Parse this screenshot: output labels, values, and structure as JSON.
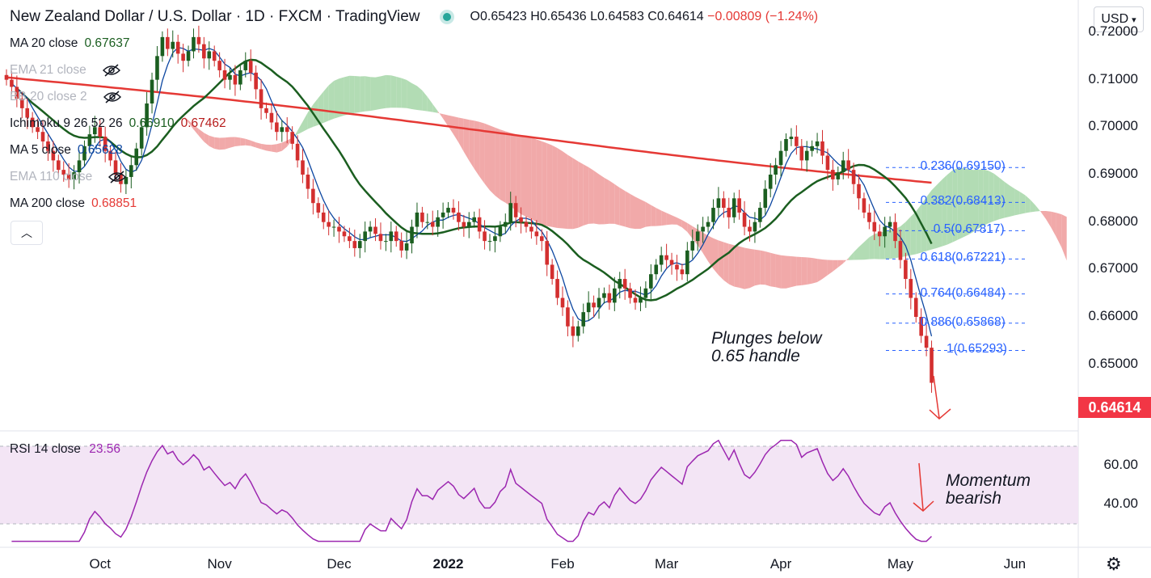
{
  "header": {
    "title": "New Zealand Dollar / U.S. Dollar · 1D · FXCM · TradingView",
    "open": "O0.65423",
    "high": "H0.65436",
    "low": "L0.64583",
    "close": "C0.64614",
    "change": "−0.00809 (−1.24%)"
  },
  "currency_button": "USD",
  "legend": [
    {
      "label": "MA 20 close",
      "value": "0.67637",
      "value2": "",
      "color": "#1b5e20",
      "color2": "",
      "dim": false,
      "eye": false
    },
    {
      "label": "EMA 21 close",
      "value": "",
      "value2": "",
      "color": "#b2b5be",
      "color2": "",
      "dim": true,
      "eye": true
    },
    {
      "label": "BB 20 close 2",
      "value": "",
      "value2": "",
      "color": "#b2b5be",
      "color2": "",
      "dim": true,
      "eye": true
    },
    {
      "label": "Ichimoku 9 26 52 26",
      "value": "0.66910",
      "value2": "0.67462",
      "color": "#1b5e20",
      "color2": "#b71c1c",
      "dim": false,
      "eye": false
    },
    {
      "label": "MA 5 close",
      "value": "0.65628",
      "value2": "",
      "color": "#0d47a1",
      "color2": "",
      "dim": false,
      "eye": false
    },
    {
      "label": "EMA 110 close",
      "value": "",
      "value2": "",
      "color": "#b2b5be",
      "color2": "",
      "dim": true,
      "eye": true
    },
    {
      "label": "MA 200 close",
      "value": "0.68851",
      "value2": "",
      "color": "#e53935",
      "color2": "",
      "dim": false,
      "eye": false
    }
  ],
  "rsi_legend": {
    "label": "RSI 14 close",
    "value": "23.56"
  },
  "last_price": "0.64614",
  "annotations": {
    "plunge": [
      "Plunges below",
      "0.65 handle"
    ],
    "momentum": [
      "Momentum",
      "bearish"
    ]
  },
  "fib_levels": [
    {
      "label": "0.236(0.69150)",
      "price": 0.6915
    },
    {
      "label": "0.382(0.68413)",
      "price": 0.68413
    },
    {
      "label": "0.5(0.67817)",
      "price": 0.67817
    },
    {
      "label": "0.618(0.67221)",
      "price": 0.67221
    },
    {
      "label": "0.764(0.66484)",
      "price": 0.66484
    },
    {
      "label": "0.886(0.65868)",
      "price": 0.65868
    },
    {
      "label": "1(0.65293)",
      "price": 0.65293
    }
  ],
  "colors": {
    "up": "#26a69a",
    "candle_up": "#1b5e20",
    "candle_down": "#d32f2f",
    "ma20": "#1b5e20",
    "ma5": "#0d47a1",
    "ma200": "#e53935",
    "cloud_bull": "#a5d6a7",
    "cloud_bear": "#ef9a9a",
    "fib": "#2962ff",
    "rsi": "#9c27b0",
    "rsi_band": "#f3e5f5",
    "arrow": "#e53935"
  },
  "chart_data": {
    "type": "candlestick",
    "title": "New Zealand Dollar / U.S. Dollar · 1D · FXCM · TradingView",
    "price_axis": {
      "ticks": [
        "0.72000",
        "0.71000",
        "0.70000",
        "0.69000",
        "0.68000",
        "0.67000",
        "0.66000",
        "0.65000"
      ],
      "values": [
        0.72,
        0.71,
        0.7,
        0.69,
        0.68,
        0.67,
        0.66,
        0.65
      ],
      "ylim": [
        0.6435,
        0.7205
      ]
    },
    "time_axis": {
      "labels": [
        "Oct",
        "Nov",
        "Dec",
        "2022",
        "Feb",
        "Mar",
        "Apr",
        "May",
        "Jun"
      ],
      "bold": [
        false,
        false,
        false,
        true,
        false,
        false,
        false,
        false,
        false
      ],
      "bar_index": [
        18,
        41,
        64,
        85,
        107,
        127,
        149,
        172,
        194
      ]
    },
    "candles_ohlc_approx": {
      "note_index_start": "Sep 2021",
      "close": [
        0.71,
        0.7085,
        0.706,
        0.704,
        0.702,
        0.7,
        0.699,
        0.697,
        0.695,
        0.693,
        0.691,
        0.69,
        0.689,
        0.6905,
        0.693,
        0.696,
        0.6985,
        0.7,
        0.698,
        0.695,
        0.693,
        0.69,
        0.688,
        0.6895,
        0.692,
        0.6955,
        0.7,
        0.705,
        0.71,
        0.715,
        0.719,
        0.7165,
        0.718,
        0.7155,
        0.714,
        0.716,
        0.719,
        0.7175,
        0.7145,
        0.716,
        0.714,
        0.712,
        0.71,
        0.711,
        0.709,
        0.712,
        0.714,
        0.7115,
        0.708,
        0.704,
        0.703,
        0.701,
        0.699,
        0.7,
        0.699,
        0.6965,
        0.693,
        0.69,
        0.687,
        0.684,
        0.682,
        0.68,
        0.679,
        0.679,
        0.678,
        0.677,
        0.676,
        0.6745,
        0.676,
        0.678,
        0.679,
        0.6775,
        0.676,
        0.676,
        0.678,
        0.676,
        0.674,
        0.6755,
        0.679,
        0.682,
        0.68,
        0.68,
        0.679,
        0.681,
        0.682,
        0.683,
        0.682,
        0.68,
        0.679,
        0.68,
        0.681,
        0.678,
        0.676,
        0.676,
        0.677,
        0.679,
        0.68,
        0.684,
        0.681,
        0.68,
        0.679,
        0.678,
        0.677,
        0.676,
        0.671,
        0.668,
        0.664,
        0.662,
        0.658,
        0.656,
        0.658,
        0.661,
        0.663,
        0.662,
        0.664,
        0.665,
        0.663,
        0.666,
        0.668,
        0.666,
        0.664,
        0.663,
        0.664,
        0.666,
        0.669,
        0.671,
        0.673,
        0.672,
        0.671,
        0.67,
        0.669,
        0.674,
        0.676,
        0.678,
        0.679,
        0.68,
        0.683,
        0.685,
        0.683,
        0.681,
        0.685,
        0.682,
        0.679,
        0.678,
        0.68,
        0.683,
        0.687,
        0.69,
        0.692,
        0.695,
        0.6975,
        0.698,
        0.696,
        0.693,
        0.695,
        0.696,
        0.697,
        0.694,
        0.691,
        0.689,
        0.6905,
        0.693,
        0.691,
        0.688,
        0.685,
        0.682,
        0.68,
        0.678,
        0.677,
        0.679,
        0.68,
        0.676,
        0.672,
        0.668,
        0.664,
        0.66,
        0.656,
        0.6535,
        0.6461
      ]
    },
    "series": [
      {
        "name": "MA 20 close",
        "last": 0.67637
      },
      {
        "name": "MA 5 close",
        "last": 0.65628
      },
      {
        "name": "MA 200 close",
        "last": 0.68851
      },
      {
        "name": "Ichimoku 9 26 52 26",
        "values": [
          0.6691,
          0.67462
        ]
      }
    ],
    "rsi": {
      "name": "RSI 14 close",
      "last": 23.56,
      "ticks": [
        "60.00",
        "40.00"
      ],
      "tick_values": [
        60,
        40
      ],
      "band": [
        30,
        70
      ],
      "ylim": [
        20,
        75
      ]
    }
  }
}
